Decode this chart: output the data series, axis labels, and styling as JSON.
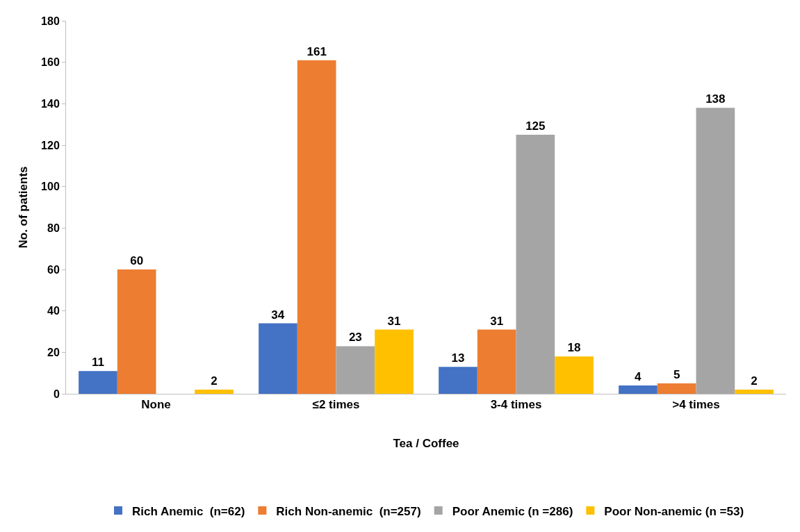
{
  "chart_data": {
    "type": "bar",
    "xlabel": "Tea / Coffee",
    "ylabel": "No. of patients",
    "categories": [
      "None",
      "≤2 times",
      "3-4 times",
      ">4 times"
    ],
    "series": [
      {
        "name": "Rich Anemic  (n=62)",
        "color": "#4472c4",
        "values": [
          11,
          34,
          13,
          4
        ]
      },
      {
        "name": "Rich Non-anemic  (n=257)",
        "color": "#ed7d31",
        "values": [
          60,
          161,
          31,
          5
        ]
      },
      {
        "name": "Poor Anemic (n =286)",
        "color": "#a5a5a5",
        "values": [
          null,
          23,
          125,
          138
        ]
      },
      {
        "name": "Poor Non-anemic (n =53)",
        "color": "#ffc000",
        "values": [
          2,
          31,
          18,
          2
        ]
      }
    ],
    "ylim": [
      0,
      180
    ],
    "yticks": [
      0,
      20,
      40,
      60,
      80,
      100,
      120,
      140,
      160,
      180
    ],
    "legend": "bottom",
    "data_labels": true
  }
}
